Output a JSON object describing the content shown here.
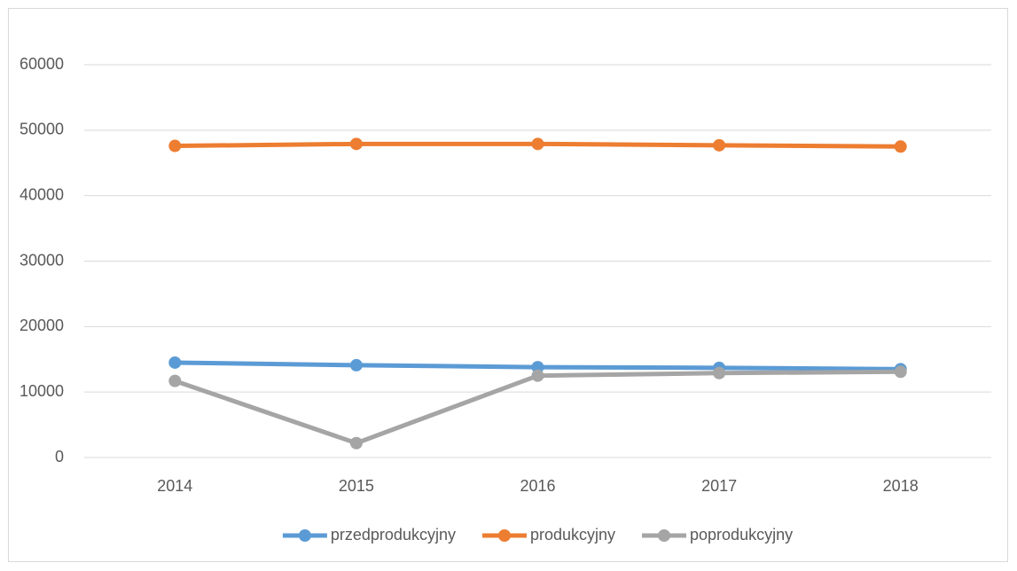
{
  "chart_data": {
    "type": "line",
    "categories": [
      "2014",
      "2015",
      "2016",
      "2017",
      "2018"
    ],
    "series": [
      {
        "name": "przedprodukcyjny",
        "color": "#5b9bd5",
        "values": [
          14500,
          14100,
          13800,
          13700,
          13500
        ]
      },
      {
        "name": "produkcyjny",
        "color": "#ed7d31",
        "values": [
          47600,
          47900,
          47900,
          47700,
          47500
        ]
      },
      {
        "name": "poprodukcyjny",
        "color": "#a5a5a5",
        "values": [
          11700,
          2200,
          12500,
          12900,
          13100
        ]
      }
    ],
    "ylim": [
      0,
      60000
    ],
    "yticks": [
      0,
      10000,
      20000,
      30000,
      40000,
      50000,
      60000
    ],
    "grid": true,
    "legend": "bottom"
  }
}
